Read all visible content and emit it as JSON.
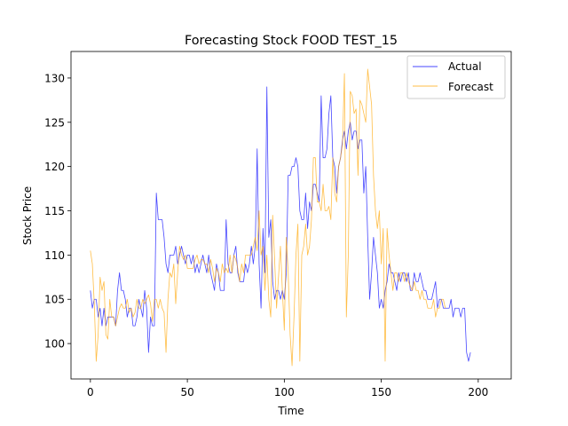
{
  "chart_data": {
    "type": "line",
    "title": "Forecasting Stock FOOD TEST_15",
    "xlabel": "Time",
    "ylabel": "Stock Price",
    "xlim": [
      -10,
      217
    ],
    "ylim": [
      96,
      133
    ],
    "x_ticks": [
      0,
      50,
      100,
      150,
      200
    ],
    "y_ticks": [
      100,
      105,
      110,
      115,
      120,
      125,
      130
    ],
    "grid": false,
    "legend_position": "top-right",
    "series": [
      {
        "name": "Actual",
        "color": "#0000ff",
        "x0": 0,
        "values": [
          106,
          104,
          105,
          105,
          103,
          104,
          102,
          104,
          102,
          103,
          103,
          103,
          103,
          102,
          106,
          108,
          106,
          106,
          105,
          103,
          104,
          104,
          102,
          102,
          103,
          105,
          104,
          103,
          106,
          104,
          99,
          103,
          102,
          102,
          117,
          114,
          114,
          114,
          112,
          109,
          108,
          110,
          110,
          110,
          111,
          109,
          110,
          111,
          110,
          109,
          110,
          110,
          109,
          110,
          108,
          109,
          108,
          109,
          110,
          109,
          108,
          110,
          108,
          107,
          106,
          109,
          108,
          106,
          106,
          106,
          114,
          109,
          108,
          108,
          110,
          111,
          108,
          107,
          107,
          107,
          109,
          108,
          109,
          111,
          109,
          111,
          122,
          109,
          104,
          113,
          108,
          129,
          112,
          114,
          107,
          105,
          106,
          106,
          105,
          106,
          105,
          108,
          119,
          119,
          120,
          120,
          121,
          120,
          115,
          114,
          114,
          117,
          113,
          116,
          115,
          118,
          118,
          117,
          116,
          128,
          121,
          121,
          122,
          126,
          128,
          121,
          120,
          117,
          120,
          121,
          123,
          124,
          122,
          124,
          125,
          123,
          124,
          124,
          122,
          123,
          123,
          117,
          120,
          112,
          105,
          108,
          112,
          110,
          108,
          104,
          105,
          104,
          106,
          107,
          109,
          108,
          108,
          107,
          106,
          108,
          107,
          108,
          108,
          107,
          108,
          106,
          106,
          108,
          107,
          107,
          108,
          107,
          106,
          106,
          105,
          105,
          105,
          106,
          107,
          104,
          105,
          105,
          104,
          104,
          104,
          104,
          105,
          103,
          104,
          104,
          104,
          103,
          104,
          104,
          99,
          98,
          99
        ]
      },
      {
        "name": "Forecast",
        "color": "#ffa500",
        "x0": 0,
        "values": [
          110.5,
          109,
          104.5,
          98,
          101,
          107.5,
          106,
          107,
          101,
          100.5,
          105,
          103,
          103,
          102,
          103,
          104,
          104.5,
          104,
          104,
          105,
          103.5,
          104,
          103,
          103.5,
          105,
          104,
          104,
          105,
          104.5,
          105,
          105.5,
          104.5,
          102.5,
          105,
          105,
          104,
          105,
          104,
          103.5,
          99,
          105,
          108,
          107.5,
          109,
          104.5,
          108,
          111,
          110,
          109.5,
          110,
          108.5,
          108.5,
          108.5,
          108.5,
          109.5,
          110,
          109,
          109.5,
          109.5,
          109,
          109,
          108,
          109.5,
          108.5,
          107,
          108.5,
          108,
          107,
          109,
          108,
          108.5,
          108,
          110,
          108,
          110,
          109.5,
          108.5,
          107,
          109,
          108,
          110,
          110,
          110,
          110,
          111,
          112,
          110.5,
          115,
          110,
          111,
          106,
          110,
          105,
          103,
          114.5,
          109.5,
          104,
          107.5,
          111,
          106,
          101.5,
          112,
          108,
          101,
          97.5,
          103,
          110,
          113.5,
          98,
          110,
          111,
          113.5,
          110,
          111,
          114,
          121,
          121,
          116,
          116,
          115,
          118,
          115,
          115,
          115.5,
          114,
          121,
          117,
          116,
          120,
          121,
          122.5,
          130.5,
          103,
          110,
          128.5,
          128,
          126,
          126.5,
          119,
          127.5,
          127,
          126,
          125,
          131,
          129,
          127,
          119,
          115,
          113,
          115,
          109,
          113,
          98,
          113,
          110,
          108,
          106,
          108,
          108,
          107,
          108,
          108,
          107,
          108,
          107,
          106.5,
          106,
          107,
          106,
          106,
          105,
          106,
          105,
          105,
          104,
          104,
          104,
          105,
          103,
          104,
          104,
          105,
          105,
          104
        ]
      }
    ]
  }
}
